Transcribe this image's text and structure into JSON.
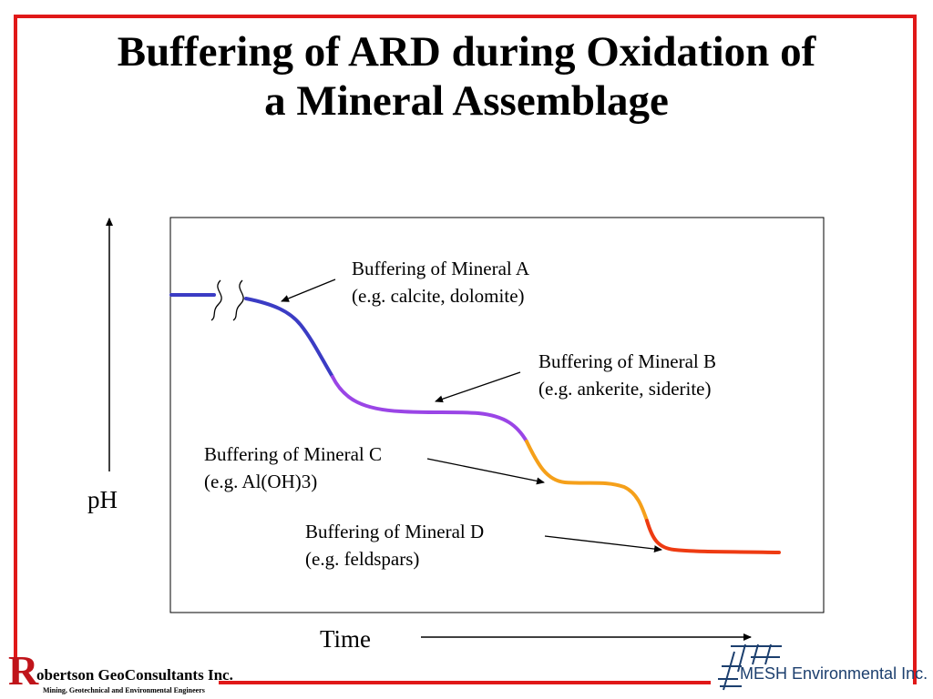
{
  "slide": {
    "title_line1": "Buffering of ARD during Oxidation of",
    "title_line2": "a Mineral Assemblage"
  },
  "diagram": {
    "y_axis_label": "pH",
    "x_axis_label": "Time",
    "colors": {
      "mineral_a": "#3b3cc4",
      "mineral_b": "#9a45e6",
      "mineral_c": "#f5a01a",
      "mineral_d": "#ee3b12",
      "frame": "#e01818"
    },
    "annotations": [
      {
        "id": "mineral-a",
        "line1": "Buffering of Mineral A",
        "line2": "(e.g. calcite, dolomite)"
      },
      {
        "id": "mineral-b",
        "line1": "Buffering of Mineral B",
        "line2": "(e.g. ankerite, siderite)"
      },
      {
        "id": "mineral-c",
        "line1": "Buffering of Mineral C",
        "line2": "(e.g. Al(OH)3)"
      },
      {
        "id": "mineral-d",
        "line1": "Buffering of Mineral D",
        "line2": "(e.g. feldspars)"
      }
    ]
  },
  "footer": {
    "left_logo_initial": "R",
    "left_logo_name": "obertson GeoConsultants Inc.",
    "left_logo_tagline": "Mining, Geotechnical and Environmental Engineers",
    "right_logo_name": "MESH Environmental Inc."
  }
}
